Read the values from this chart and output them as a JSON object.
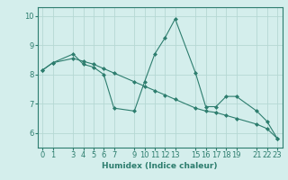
{
  "xlabel": "Humidex (Indice chaleur)",
  "bg_color": "#d4eeec",
  "line_color": "#2d7d6e",
  "grid_color": "#b5d8d4",
  "xlim": [
    -0.5,
    23.5
  ],
  "ylim": [
    5.5,
    10.3
  ],
  "yticks": [
    6,
    7,
    8,
    9,
    10
  ],
  "xticks": [
    0,
    1,
    3,
    4,
    5,
    6,
    7,
    9,
    10,
    11,
    12,
    13,
    15,
    16,
    17,
    18,
    19,
    21,
    22,
    23
  ],
  "line1_x": [
    0,
    1,
    3,
    4,
    5,
    6,
    7,
    9,
    10,
    11,
    12,
    13,
    15,
    16,
    17,
    18,
    19,
    21,
    22,
    23
  ],
  "line1_y": [
    8.15,
    8.4,
    8.7,
    8.35,
    8.25,
    8.0,
    6.85,
    6.75,
    7.75,
    8.7,
    9.25,
    9.9,
    8.05,
    6.9,
    6.9,
    7.25,
    7.25,
    6.75,
    6.4,
    5.82
  ],
  "line2_x": [
    0,
    1,
    3,
    4,
    5,
    6,
    7,
    9,
    10,
    11,
    12,
    13,
    15,
    16,
    17,
    18,
    19,
    21,
    22,
    23
  ],
  "line2_y": [
    8.15,
    8.4,
    8.55,
    8.45,
    8.35,
    8.2,
    8.05,
    7.75,
    7.6,
    7.45,
    7.3,
    7.15,
    6.85,
    6.75,
    6.7,
    6.6,
    6.5,
    6.3,
    6.15,
    5.82
  ],
  "font_size_label": 6.5,
  "font_size_tick": 6
}
